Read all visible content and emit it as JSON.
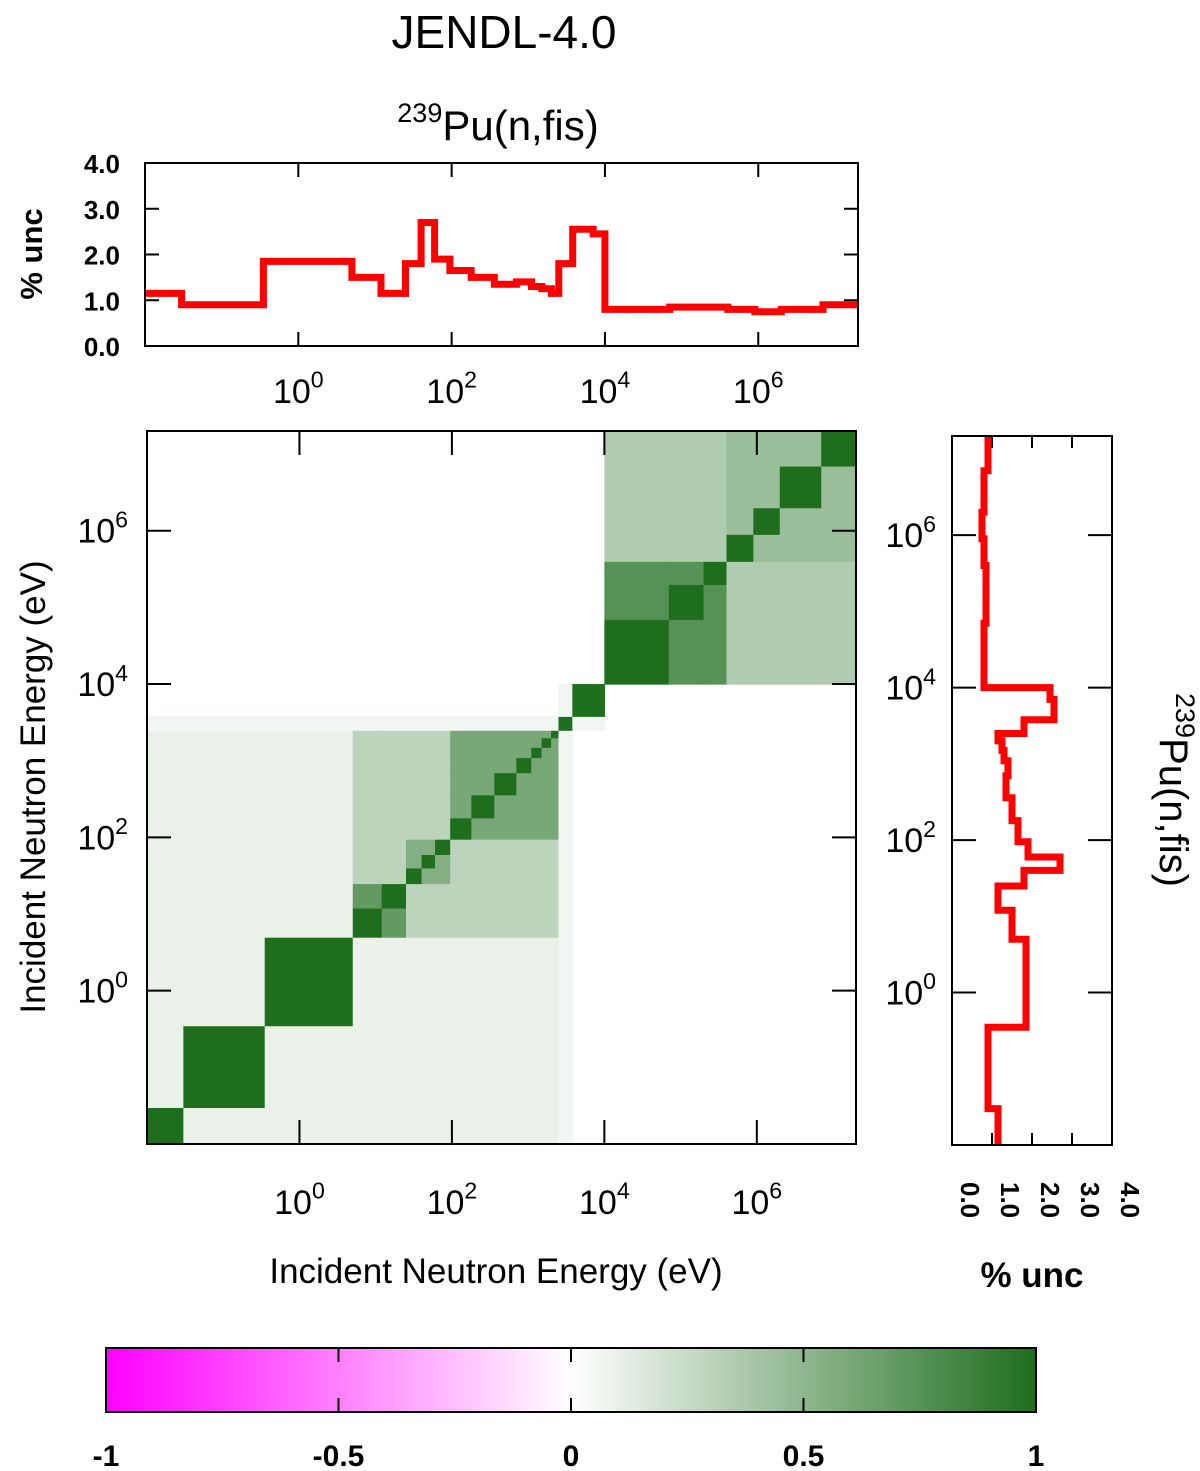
{
  "title": "JENDL-4.0",
  "reaction": {
    "mass": "239",
    "rest": "Pu(n,fis)"
  },
  "colors": {
    "uncertainty_line": "#ff0000",
    "positive_max": "#1e6e1e",
    "negative_max": "#ff00ff",
    "zero": "#ffffff",
    "frame": "#000000"
  },
  "chart_data": [
    {
      "name": "uncertainty-top",
      "type": "line",
      "style": "step",
      "xscale": "log",
      "xlim": [
        0.01,
        20000000
      ],
      "ylim": [
        0,
        4
      ],
      "ylabel": "% unc",
      "xlabel": "",
      "xticks": [
        1,
        100,
        10000,
        1000000
      ],
      "xtick_labels": [
        {
          "base": "10",
          "exp": "0"
        },
        {
          "base": "10",
          "exp": "2"
        },
        {
          "base": "10",
          "exp": "4"
        },
        {
          "base": "10",
          "exp": "6"
        }
      ],
      "yticks": [
        0,
        1,
        2,
        3,
        4
      ],
      "ytick_labels": [
        "0.0",
        "1.0",
        "2.0",
        "3.0",
        "4.0"
      ],
      "grid": false,
      "series": [
        {
          "edges": [
            0.01,
            0.03,
            0.35,
            5,
            12,
            25,
            40,
            60,
            95,
            180,
            360,
            700,
            1100,
            1500,
            2000,
            2500,
            3800,
            7000,
            10000,
            70000,
            200000,
            400000,
            900000,
            2000000,
            7000000,
            20000000
          ],
          "values": [
            1.15,
            0.9,
            1.85,
            1.5,
            1.15,
            1.8,
            2.7,
            1.9,
            1.65,
            1.5,
            1.35,
            1.4,
            1.3,
            1.25,
            1.15,
            1.8,
            2.55,
            2.45,
            0.8,
            0.85,
            0.85,
            0.8,
            0.75,
            0.8,
            0.9
          ]
        }
      ]
    },
    {
      "name": "correlation-matrix",
      "type": "heatmap",
      "xscale": "log",
      "yscale": "log",
      "xlim": [
        0.01,
        20000000
      ],
      "ylim": [
        0.01,
        20000000
      ],
      "xlabel": "Incident Neutron Energy (eV)",
      "ylabel": "Incident Neutron Energy (eV)",
      "xticks": [
        1,
        100,
        10000,
        1000000
      ],
      "xtick_labels": [
        {
          "base": "10",
          "exp": "0"
        },
        {
          "base": "10",
          "exp": "2"
        },
        {
          "base": "10",
          "exp": "4"
        },
        {
          "base": "10",
          "exp": "6"
        }
      ],
      "yticks": [
        1,
        100,
        10000,
        1000000
      ],
      "ytick_labels": [
        {
          "base": "10",
          "exp": "0"
        },
        {
          "base": "10",
          "exp": "2"
        },
        {
          "base": "10",
          "exp": "4"
        },
        {
          "base": "10",
          "exp": "6"
        }
      ],
      "value_range": [
        -1,
        1
      ],
      "edges": [
        0.01,
        0.03,
        0.35,
        5,
        12,
        25,
        40,
        60,
        95,
        180,
        360,
        700,
        1100,
        1500,
        2000,
        2500,
        3800,
        7000,
        10000,
        70000,
        200000,
        400000,
        900000,
        2000000,
        7000000,
        20000000
      ],
      "groups": [
        {
          "from": 0,
          "to": 1,
          "within": 1.0
        },
        {
          "from": 1,
          "to": 2,
          "within": 1.0
        },
        {
          "from": 2,
          "to": 3,
          "within": 1.0
        },
        {
          "from": 3,
          "to": 5,
          "within": 0.7
        },
        {
          "from": 5,
          "to": 8,
          "within": 0.55
        },
        {
          "from": 8,
          "to": 15,
          "within": 0.6
        },
        {
          "from": 15,
          "to": 16,
          "within": 0.1
        },
        {
          "from": 16,
          "to": 18,
          "within": 1.0
        },
        {
          "from": 18,
          "to": 21,
          "within": 0.75
        },
        {
          "from": 21,
          "to": 25,
          "within": 0.45
        }
      ],
      "cross_low": 0.3,
      "cross_low_faint": 0.1,
      "cross_high": 0.35,
      "diagonal": 1.0
    },
    {
      "name": "uncertainty-right",
      "type": "line",
      "style": "step",
      "orientation": "vertical",
      "yscale": "log",
      "ylim": [
        0.01,
        20000000
      ],
      "xlim": [
        0,
        4
      ],
      "xlabel": "% unc",
      "xticks": [
        0,
        1,
        2,
        3,
        4
      ],
      "xtick_labels": [
        "0.0",
        "1.0",
        "2.0",
        "3.0",
        "4.0"
      ],
      "yticks": [
        1,
        100,
        10000,
        1000000
      ],
      "ytick_labels": [
        {
          "base": "10",
          "exp": "0"
        },
        {
          "base": "10",
          "exp": "2"
        },
        {
          "base": "10",
          "exp": "4"
        },
        {
          "base": "10",
          "exp": "6"
        }
      ],
      "series_ref": "uncertainty-top"
    },
    {
      "name": "colorbar",
      "type": "heatmap",
      "range": [
        -1,
        1
      ],
      "ticks": [
        -1,
        -0.5,
        0,
        0.5,
        1
      ],
      "tick_labels": [
        "-1",
        "-0.5",
        "0",
        "0.5",
        "1"
      ]
    }
  ]
}
